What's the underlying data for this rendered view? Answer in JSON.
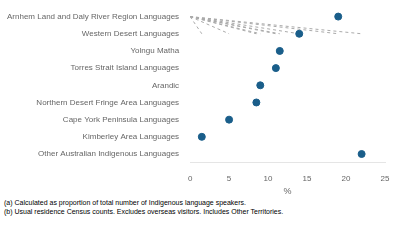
{
  "chart_data": {
    "type": "lollipop",
    "orientation": "horizontal",
    "xlabel": "%",
    "categories": [
      "Arnhem Land and Daly River Region Languages",
      "Western Desert Languages",
      "Yolngu Matha",
      "Torres Strait Island Languages",
      "Arandic",
      "Northern Desert Fringe Area Languages",
      "Cape York Peninsula Languages",
      "Kimberley Area Languages",
      "Other Australian Indigenous Languages"
    ],
    "values": [
      19.0,
      14.0,
      11.5,
      11.0,
      9.0,
      8.5,
      5.0,
      1.5,
      22.0
    ],
    "color": "#1a5e8a",
    "line_style": "dashed",
    "xlim": [
      0,
      25
    ],
    "xticks": [
      0,
      5,
      10,
      15,
      20,
      25
    ],
    "grid": false,
    "annotations": [
      "(a) Calculated as proportion of total number of Indigenous language speakers.",
      "(b) Usual residence Census counts.  Excludes overseas visitors.  Includes Other Territories."
    ]
  }
}
